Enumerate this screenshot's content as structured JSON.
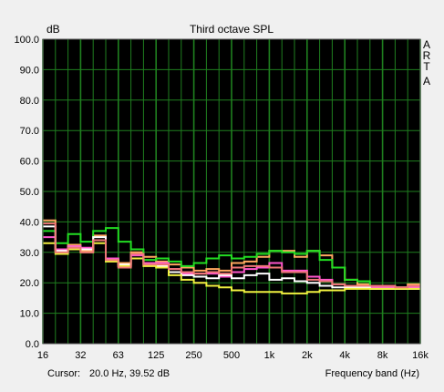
{
  "colors": {
    "background": "#f0f0f0",
    "plot_background": "#000000",
    "grid": "#1f7f1f",
    "frame": "#5a5a5a",
    "text": "#000000"
  },
  "cursor_label": "Cursor:",
  "cursor_value": "20.0 Hz, 39.52 dB",
  "side_label": [
    "A",
    "R",
    "T",
    "A"
  ],
  "chart_data": {
    "type": "line",
    "title": "Third octave SPL",
    "ylabel": "dB",
    "xlabel": "Frequency band (Hz)",
    "ylim": [
      0,
      100
    ],
    "y_ticks": [
      "0.0",
      "10.0",
      "20.0",
      "30.0",
      "40.0",
      "50.0",
      "60.0",
      "70.0",
      "80.0",
      "90.0",
      "100.0"
    ],
    "x_tick_labels": [
      "16",
      "32",
      "63",
      "125",
      "250",
      "500",
      "1k",
      "2k",
      "4k",
      "8k",
      "16k"
    ],
    "x_minor_grid_count": 30,
    "grid": true,
    "bands": [
      "20",
      "25",
      "31.5",
      "40",
      "50",
      "63",
      "80",
      "100",
      "125",
      "160",
      "200",
      "250",
      "315",
      "400",
      "500",
      "630",
      "800",
      "1k",
      "1.25k",
      "1.6k",
      "2k",
      "2.5k",
      "3.15k",
      "4k",
      "5k",
      "6.3k",
      "8k",
      "10k",
      "12.5k",
      "16k"
    ],
    "series": [
      {
        "color": "#ffa860",
        "values": [
          40.5,
          31,
          32.5,
          30.5,
          35.5,
          28,
          26.5,
          30,
          28.5,
          27,
          26,
          25,
          24,
          24.5,
          24,
          26.5,
          27,
          28.5,
          30.5,
          30.5,
          28.5,
          30.5,
          29,
          25,
          21,
          19.5,
          19,
          18.5,
          18.5,
          19.5
        ]
      },
      {
        "color": "#22dd22",
        "values": [
          37,
          33,
          36,
          33.5,
          37,
          38,
          33.5,
          31,
          27.5,
          28,
          27,
          25.5,
          26.5,
          28,
          29,
          28,
          28.5,
          29.5,
          30.5,
          30,
          29.5,
          30.5,
          27.5,
          25,
          21,
          20.5,
          19,
          19,
          18.5,
          18.5
        ]
      },
      {
        "color": "#ff55cc",
        "values": [
          35,
          31,
          32,
          31.5,
          34,
          28,
          25.5,
          29,
          26.5,
          26.5,
          24.5,
          23,
          23,
          23,
          22,
          23.5,
          24.5,
          25,
          26.5,
          24,
          24,
          22,
          21,
          19.5,
          19,
          18.5,
          18.5,
          18.5,
          18.5,
          18.5
        ]
      },
      {
        "color": "#ffffff",
        "values": [
          38.5,
          30.5,
          31.5,
          31,
          35,
          27.5,
          26,
          29.5,
          26,
          25.5,
          23.5,
          22.5,
          22,
          21.5,
          22.5,
          21.5,
          22.5,
          23,
          21,
          21.5,
          20.5,
          20,
          19,
          18.5,
          18.5,
          18.5,
          18,
          18,
          18,
          18
        ]
      },
      {
        "color": "#f0f040",
        "values": [
          33,
          29.5,
          31,
          30,
          33,
          27,
          25.5,
          28,
          25.5,
          25,
          22.5,
          21,
          20,
          19,
          18.5,
          17.5,
          17,
          17,
          17,
          16.5,
          16.5,
          17,
          17.5,
          17.5,
          18,
          18,
          18,
          18,
          18,
          18
        ]
      },
      {
        "color": "#ee7777",
        "values": [
          39.5,
          30,
          31.5,
          30,
          34,
          27.5,
          25,
          29.5,
          26,
          26,
          24.5,
          23.5,
          23,
          23.5,
          23,
          25,
          25.5,
          25.5,
          25,
          23.5,
          23.5,
          21,
          20.5,
          19.5,
          19,
          19,
          19,
          19,
          18.5,
          19
        ]
      }
    ]
  }
}
